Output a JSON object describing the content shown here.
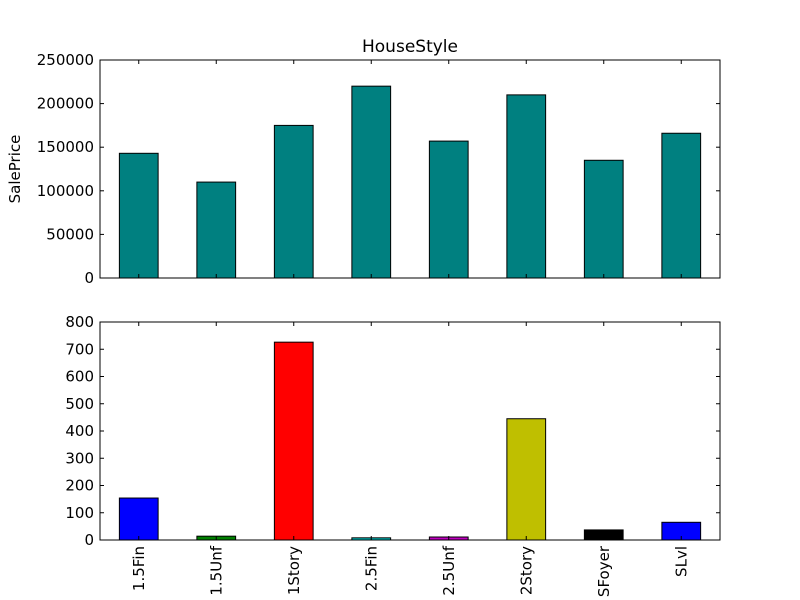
{
  "chart_data": [
    {
      "type": "bar",
      "title": "HouseStyle",
      "xlabel": "",
      "ylabel": "SalePrice",
      "categories": [
        "1.5Fin",
        "1.5Unf",
        "1Story",
        "2.5Fin",
        "2.5Unf",
        "2Story",
        "SFoyer",
        "SLvl"
      ],
      "values": [
        143000,
        110000,
        175000,
        220000,
        157000,
        210000,
        135000,
        166000
      ],
      "ylim": [
        0,
        250000
      ],
      "yticks": [
        "0",
        "50000",
        "100000",
        "150000",
        "200000",
        "250000"
      ],
      "bar_colors": [
        "#008080"
      ],
      "show_xticklabels": false,
      "grid": false
    },
    {
      "type": "bar",
      "title": "",
      "xlabel": "",
      "ylabel": "",
      "categories": [
        "1.5Fin",
        "1.5Unf",
        "1Story",
        "2.5Fin",
        "2.5Unf",
        "2Story",
        "SFoyer",
        "SLvl"
      ],
      "values": [
        154,
        14,
        726,
        8,
        11,
        445,
        37,
        65
      ],
      "ylim": [
        0,
        800
      ],
      "yticks": [
        "0",
        "100",
        "200",
        "300",
        "400",
        "500",
        "600",
        "700",
        "800"
      ],
      "bar_colors": [
        "#0000ff",
        "#007f00",
        "#ff0000",
        "#00bfbf",
        "#bf00bf",
        "#bfbf00",
        "#000000",
        "#0000ff"
      ],
      "show_xticklabels": true,
      "xtick_rotation": "vertical",
      "grid": false
    }
  ]
}
